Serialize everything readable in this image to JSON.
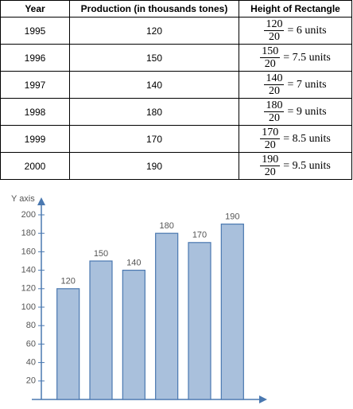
{
  "table": {
    "headers": [
      "Year",
      "Production (in thousands tones)",
      "Height of Rectangle"
    ],
    "rows": [
      {
        "year": "1995",
        "production": "120",
        "numerator": "120",
        "denominator": "20",
        "result": "= 6 units"
      },
      {
        "year": "1996",
        "production": "150",
        "numerator": "150",
        "denominator": "20",
        "result": "= 7.5 units"
      },
      {
        "year": "1997",
        "production": "140",
        "numerator": "140",
        "denominator": "20",
        "result": "= 7 units"
      },
      {
        "year": "1998",
        "production": "180",
        "numerator": "180",
        "denominator": "20",
        "result": "= 9 units"
      },
      {
        "year": "1999",
        "production": "170",
        "numerator": "170",
        "denominator": "20",
        "result": "= 8.5 units"
      },
      {
        "year": "2000",
        "production": "190",
        "numerator": "190",
        "denominator": "20",
        "result": "= 9.5 units"
      }
    ]
  },
  "chart_data": {
    "type": "bar",
    "y_label": "Y axis",
    "categories": [
      null,
      null,
      null,
      null,
      null,
      null
    ],
    "values": [
      120,
      150,
      140,
      180,
      170,
      190
    ],
    "color": "#a9c0dc",
    "edge_color": "#4a78b0",
    "ylim": [
      0,
      200
    ],
    "yticks": [
      20,
      40,
      60,
      80,
      100,
      120,
      140,
      160,
      180,
      200
    ]
  }
}
